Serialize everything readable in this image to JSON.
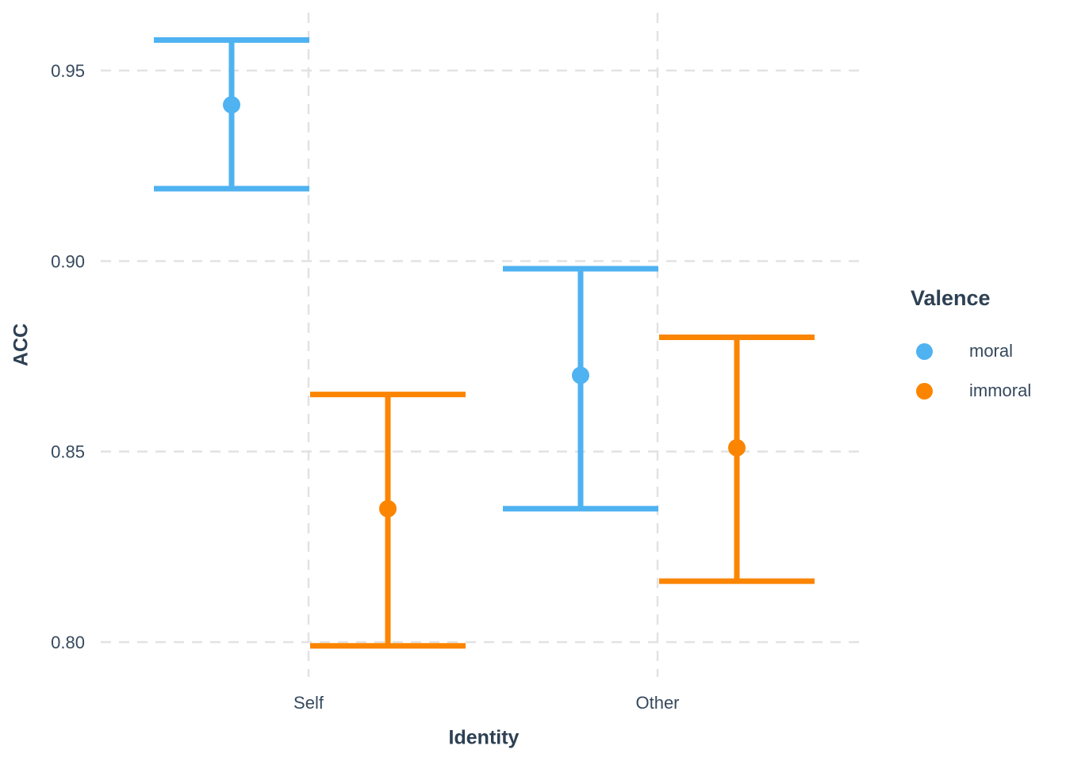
{
  "chart_data": {
    "type": "pointrange",
    "title": "",
    "xlabel": "Identity",
    "ylabel": "ACC",
    "x_categories": [
      "Self",
      "Other"
    ],
    "y_ticks": [
      0.8,
      0.85,
      0.9,
      0.95
    ],
    "y_tick_labels": [
      "0.80",
      "0.85",
      "0.90",
      "0.95"
    ],
    "ylim": [
      0.791,
      0.965
    ],
    "grid": "dashed-major",
    "legend": {
      "title": "Valence",
      "position": "right",
      "entries": [
        {
          "label": "moral",
          "color": "#4fb2f1"
        },
        {
          "label": "immoral",
          "color": "#fb8500"
        }
      ]
    },
    "series": [
      {
        "name": "moral",
        "color": "#4fb2f1",
        "points": [
          {
            "x": "Self",
            "y": 0.941,
            "ymin": 0.919,
            "ymax": 0.958
          },
          {
            "x": "Other",
            "y": 0.87,
            "ymin": 0.835,
            "ymax": 0.898
          }
        ]
      },
      {
        "name": "immoral",
        "color": "#fb8500",
        "points": [
          {
            "x": "Self",
            "y": 0.835,
            "ymin": 0.799,
            "ymax": 0.865
          },
          {
            "x": "Other",
            "y": 0.851,
            "ymin": 0.816,
            "ymax": 0.88
          }
        ]
      }
    ],
    "colors": {
      "axis_title_text": "#2e4053",
      "tick_text": "#36495d",
      "gridline": "#e2e2e2"
    }
  }
}
